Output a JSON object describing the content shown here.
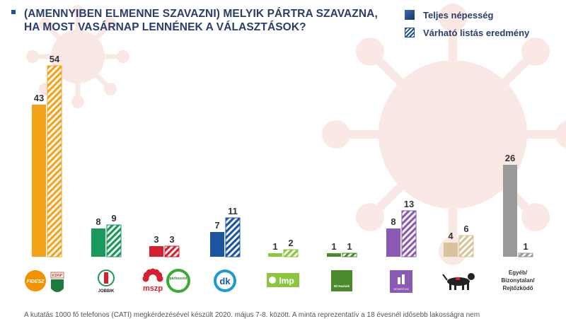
{
  "title_line1": "(AMENNYIBEN ELMENNE SZAVAZNI) MELYIK PÁRTRA SZAVAZNA,",
  "title_line2": "HA MOST VASÁRNAP LENNÉNEK A VÁLASZTÁSOK?",
  "legend": {
    "solid_label": "Teljes népesség",
    "hatched_label": "Várható listás eredmény"
  },
  "footnote": "A kutatás 1000 fő telefonos (CATI) megkérdezésével készült 2020. május 7-8. között. A minta reprezentatív a 18 évesnél idősebb lakosságra nem",
  "chart_data": {
    "type": "bar",
    "categories": [
      "Fidesz",
      "Jobbik",
      "MSZP-Párbeszéd",
      "DK",
      "LMP",
      "Mi Hazánk",
      "Momentum",
      "MKKP",
      "Egyéb/Bizonytalan/Rejtőzködő"
    ],
    "series": [
      {
        "name": "Teljes népesség",
        "values": [
          43,
          8,
          3,
          7,
          1,
          1,
          8,
          4,
          26
        ]
      },
      {
        "name": "Várható listás eredmény",
        "values": [
          54,
          9,
          3,
          11,
          2,
          1,
          13,
          6,
          1
        ]
      }
    ],
    "colors": [
      "#f5a21b",
      "#1a9a5a",
      "#d6202f",
      "#1c56a3",
      "#8cc63f",
      "#4a8a2c",
      "#8a5ab5",
      "#d8c39a",
      "#999999"
    ],
    "logos": [
      "FIDESZ",
      "JOBBIK",
      "mszp",
      "dk",
      "lmp",
      "Mi Hazánk",
      "MOMENTUM",
      "",
      "Egyéb/ Bizonytalan/ Rejtőzködő"
    ],
    "logo_small_texts": {
      "fidesz_kdnp": "KDNP",
      "parbeszed": "párbeszéd"
    },
    "grid": false,
    "legend_position": "top-right"
  }
}
